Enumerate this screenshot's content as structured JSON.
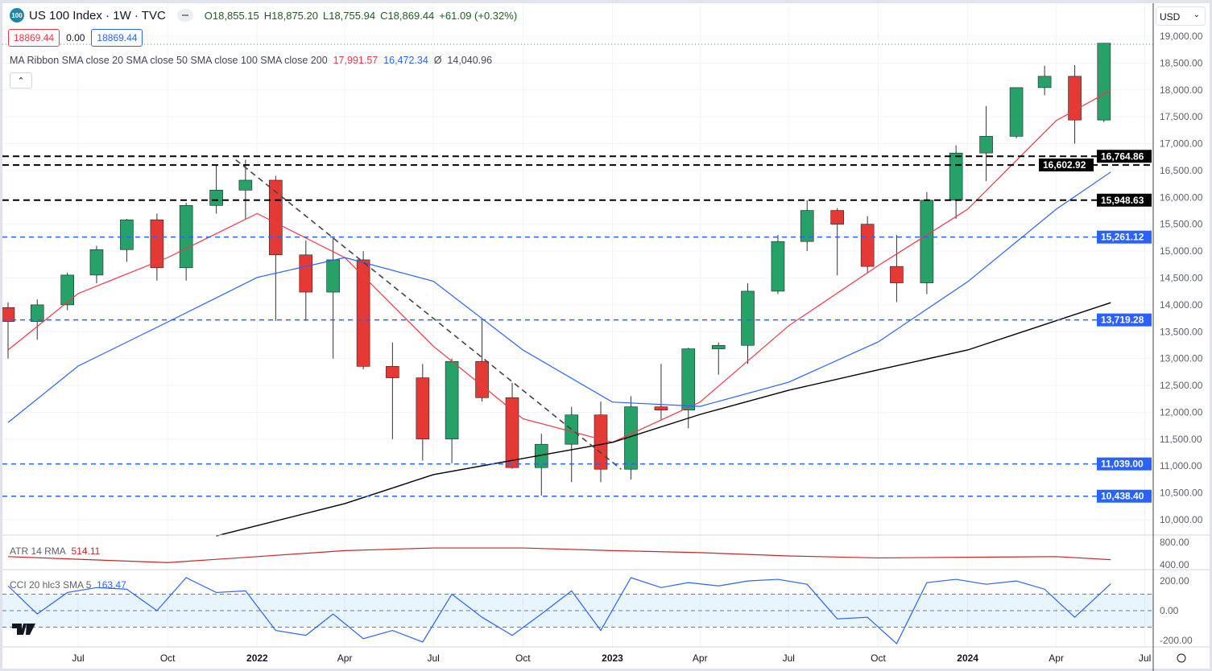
{
  "header": {
    "logo_text": "100",
    "title": "US 100 Index · 1W · TVC",
    "open": "O18,855.15",
    "high": "H18,875.20",
    "low": "L18,755.94",
    "close": "C18,869.44",
    "change": "+61.09 (+0.32%)",
    "bid": "18869.44",
    "spread": "0.00",
    "ask": "18869.44"
  },
  "ma_legend": {
    "label": "MA Ribbon SMA close 20 SMA close 50 SMA close 100 SMA close 200",
    "v20": "17,991.57",
    "v50": "16,472.34",
    "v100": "Ø",
    "v200": "14,040.96"
  },
  "collapse_icon": "chevron-up-icon",
  "currency": "USD",
  "atr_label": {
    "name": "ATR 14 RMA",
    "value": "514.11"
  },
  "cci_label": {
    "name": "CCI 20 hlc3 SMA 5",
    "value": "163.47"
  },
  "colors": {
    "up": "#26a269",
    "down": "#e53935",
    "sma20": "#f23645",
    "sma50": "#2962ff",
    "sma200": "#000000",
    "atr": "#c62828",
    "cci": "#2962ff",
    "blue_level": "#2962ff",
    "black_level": "#000000"
  },
  "chart_data": {
    "type": "candlestick",
    "interval": "1W (shown as monthly approximation)",
    "ylim": [
      10000,
      19000
    ],
    "y_ticks": [
      "19,000.00",
      "18,500.00",
      "18,000.00",
      "17,500.00",
      "17,000.00",
      "16,500.00",
      "16,000.00",
      "15,500.00",
      "15,000.00",
      "14,500.00",
      "14,000.00",
      "13,500.00",
      "13,000.00",
      "12,500.00",
      "12,000.00",
      "11,500.00",
      "11,000.00",
      "10,500.00",
      "10,000.00"
    ],
    "x_ticks": [
      {
        "d": "2021-07-01",
        "l": "Jul"
      },
      {
        "d": "2021-10-01",
        "l": "Oct"
      },
      {
        "d": "2022-01-01",
        "l": "2022"
      },
      {
        "d": "2022-04-01",
        "l": "Apr"
      },
      {
        "d": "2022-07-01",
        "l": "Jul"
      },
      {
        "d": "2022-10-01",
        "l": "Oct"
      },
      {
        "d": "2023-01-01",
        "l": "2023"
      },
      {
        "d": "2023-04-01",
        "l": "Apr"
      },
      {
        "d": "2023-07-01",
        "l": "Jul"
      },
      {
        "d": "2023-10-01",
        "l": "Oct"
      },
      {
        "d": "2024-01-01",
        "l": "2024"
      },
      {
        "d": "2024-04-01",
        "l": "Apr"
      },
      {
        "d": "2024-07-01",
        "l": "Jul"
      }
    ],
    "candles": [
      [
        "2021-04-20",
        13950,
        14050,
        13000,
        13690
      ],
      [
        "2021-05-20",
        13690,
        14100,
        13350,
        14000
      ],
      [
        "2021-06-20",
        14000,
        14600,
        13900,
        14554
      ],
      [
        "2021-07-20",
        14554,
        15100,
        14400,
        15028
      ],
      [
        "2021-08-20",
        15028,
        15600,
        14800,
        15583
      ],
      [
        "2021-09-20",
        15583,
        15700,
        14450,
        14690
      ],
      [
        "2021-10-20",
        14690,
        15900,
        14450,
        15850
      ],
      [
        "2021-11-20",
        15850,
        16600,
        15700,
        16135
      ],
      [
        "2021-12-20",
        16135,
        16700,
        15600,
        16320
      ],
      [
        "2022-01-20",
        16320,
        16400,
        13700,
        14930
      ],
      [
        "2022-02-20",
        14930,
        15200,
        13700,
        14237
      ],
      [
        "2022-03-20",
        14237,
        15250,
        13000,
        14838
      ],
      [
        "2022-04-20",
        14838,
        15000,
        12800,
        12855
      ],
      [
        "2022-05-20",
        12855,
        13300,
        11500,
        12642
      ],
      [
        "2022-06-20",
        12642,
        12900,
        11100,
        11503
      ],
      [
        "2022-07-20",
        11503,
        13000,
        11050,
        12947
      ],
      [
        "2022-08-20",
        12947,
        13700,
        12200,
        12272
      ],
      [
        "2022-09-20",
        12272,
        12550,
        10950,
        10971
      ],
      [
        "2022-10-20",
        10971,
        11600,
        10450,
        11405
      ],
      [
        "2022-11-20",
        11405,
        12100,
        10700,
        11951
      ],
      [
        "2022-12-20",
        11951,
        12200,
        10700,
        10940
      ],
      [
        "2023-01-20",
        10940,
        12300,
        10750,
        12102
      ],
      [
        "2023-02-20",
        12102,
        12900,
        11850,
        12042
      ],
      [
        "2023-03-20",
        12042,
        13200,
        11700,
        13181
      ],
      [
        "2023-04-20",
        13181,
        13300,
        12700,
        13246
      ],
      [
        "2023-05-20",
        13246,
        14400,
        12900,
        14254
      ],
      [
        "2023-06-20",
        14254,
        15300,
        14200,
        15179
      ],
      [
        "2023-07-20",
        15179,
        15950,
        15000,
        15757
      ],
      [
        "2023-08-20",
        15757,
        15800,
        14550,
        15501
      ],
      [
        "2023-09-20",
        15501,
        15650,
        14600,
        14715
      ],
      [
        "2023-10-20",
        14715,
        15300,
        14050,
        14409
      ],
      [
        "2023-11-20",
        14409,
        16100,
        14200,
        15947
      ],
      [
        "2023-12-20",
        15947,
        16970,
        15600,
        16826
      ],
      [
        "2024-01-20",
        16826,
        17700,
        16300,
        17137
      ],
      [
        "2024-02-20",
        17137,
        18050,
        17100,
        18043
      ],
      [
        "2024-03-20",
        18043,
        18450,
        17900,
        18254
      ],
      [
        "2024-04-20",
        18254,
        18460,
        17000,
        17440
      ],
      [
        "2024-05-20",
        17440,
        18875,
        17400,
        18869
      ]
    ],
    "sma20": [
      [
        "2021-04-20",
        13160
      ],
      [
        "2021-07-01",
        14210
      ],
      [
        "2021-10-01",
        14880
      ],
      [
        "2022-01-01",
        15700
      ],
      [
        "2022-04-01",
        14880
      ],
      [
        "2022-07-01",
        13230
      ],
      [
        "2022-10-01",
        11880
      ],
      [
        "2023-01-01",
        11440
      ],
      [
        "2023-04-01",
        12190
      ],
      [
        "2023-07-01",
        13610
      ],
      [
        "2023-10-01",
        14730
      ],
      [
        "2024-01-01",
        15780
      ],
      [
        "2024-04-01",
        17430
      ],
      [
        "2024-05-27",
        17992
      ]
    ],
    "sma50": [
      [
        "2021-04-20",
        11810
      ],
      [
        "2021-07-01",
        12860
      ],
      [
        "2021-10-01",
        13680
      ],
      [
        "2022-01-01",
        14510
      ],
      [
        "2022-04-01",
        14880
      ],
      [
        "2022-07-01",
        14440
      ],
      [
        "2022-10-01",
        13160
      ],
      [
        "2023-01-01",
        12190
      ],
      [
        "2023-04-01",
        12110
      ],
      [
        "2023-07-01",
        12560
      ],
      [
        "2023-10-01",
        13310
      ],
      [
        "2024-01-01",
        14430
      ],
      [
        "2024-04-01",
        15780
      ],
      [
        "2024-05-27",
        16472
      ]
    ],
    "sma200": [
      [
        "2021-11-20",
        9700
      ],
      [
        "2022-04-01",
        10300
      ],
      [
        "2022-07-01",
        10840
      ],
      [
        "2023-01-01",
        11440
      ],
      [
        "2023-04-01",
        11960
      ],
      [
        "2023-07-01",
        12410
      ],
      [
        "2023-10-01",
        12790
      ],
      [
        "2024-01-01",
        13160
      ],
      [
        "2024-05-27",
        14041
      ]
    ],
    "levels": [
      {
        "v": 16764.86,
        "label": "16,764.86",
        "style": "black"
      },
      {
        "v": 16602.92,
        "label": "16,602.92",
        "style": "black"
      },
      {
        "v": 15948.63,
        "label": "15,948.63",
        "style": "black"
      },
      {
        "v": 15261.12,
        "label": "15,261.12",
        "style": "blue"
      },
      {
        "v": 13719.28,
        "label": "13,719.28",
        "style": "blue"
      },
      {
        "v": 11039.0,
        "label": "11,039.00",
        "style": "blue"
      },
      {
        "v": 10438.4,
        "label": "10,438.40",
        "style": "blue"
      }
    ],
    "trendline": [
      [
        "2021-12-10",
        16700
      ],
      [
        "2023-01-10",
        10940
      ]
    ],
    "atr": {
      "ylim": [
        400,
        800
      ],
      "ticks": [
        "800.00",
        "400.00"
      ],
      "values": [
        [
          "2021-04-20",
          560
        ],
        [
          "2021-07-01",
          520
        ],
        [
          "2021-10-01",
          470
        ],
        [
          "2022-01-01",
          560
        ],
        [
          "2022-04-01",
          650
        ],
        [
          "2022-07-01",
          690
        ],
        [
          "2022-10-01",
          690
        ],
        [
          "2023-01-01",
          650
        ],
        [
          "2023-04-01",
          620
        ],
        [
          "2023-07-01",
          570
        ],
        [
          "2023-10-01",
          540
        ],
        [
          "2024-01-01",
          550
        ],
        [
          "2024-04-01",
          560
        ],
        [
          "2024-05-27",
          514
        ]
      ]
    },
    "cci": {
      "ylim": [
        -200,
        200
      ],
      "ticks": [
        "200.00",
        "0.00",
        "-200.00"
      ],
      "bands": [
        100,
        -100
      ],
      "values": [
        [
          "2021-04-20",
          150
        ],
        [
          "2021-05-20",
          -20
        ],
        [
          "2021-06-20",
          110
        ],
        [
          "2021-07-20",
          140
        ],
        [
          "2021-08-20",
          130
        ],
        [
          "2021-09-20",
          0
        ],
        [
          "2021-10-20",
          200
        ],
        [
          "2021-11-20",
          110
        ],
        [
          "2021-12-20",
          120
        ],
        [
          "2022-01-20",
          -120
        ],
        [
          "2022-02-20",
          -150
        ],
        [
          "2022-03-20",
          -20
        ],
        [
          "2022-04-20",
          -170
        ],
        [
          "2022-05-20",
          -120
        ],
        [
          "2022-06-20",
          -190
        ],
        [
          "2022-07-20",
          100
        ],
        [
          "2022-08-20",
          -40
        ],
        [
          "2022-09-20",
          -150
        ],
        [
          "2022-10-20",
          -20
        ],
        [
          "2022-11-20",
          120
        ],
        [
          "2022-12-20",
          -120
        ],
        [
          "2023-01-20",
          200
        ],
        [
          "2023-02-20",
          140
        ],
        [
          "2023-03-20",
          170
        ],
        [
          "2023-04-20",
          150
        ],
        [
          "2023-05-20",
          180
        ],
        [
          "2023-06-20",
          190
        ],
        [
          "2023-07-20",
          160
        ],
        [
          "2023-08-20",
          -50
        ],
        [
          "2023-09-20",
          -40
        ],
        [
          "2023-10-20",
          -200
        ],
        [
          "2023-11-20",
          170
        ],
        [
          "2023-12-20",
          190
        ],
        [
          "2024-01-20",
          160
        ],
        [
          "2024-02-20",
          180
        ],
        [
          "2024-03-20",
          130
        ],
        [
          "2024-04-20",
          -40
        ],
        [
          "2024-05-27",
          163
        ]
      ]
    }
  }
}
